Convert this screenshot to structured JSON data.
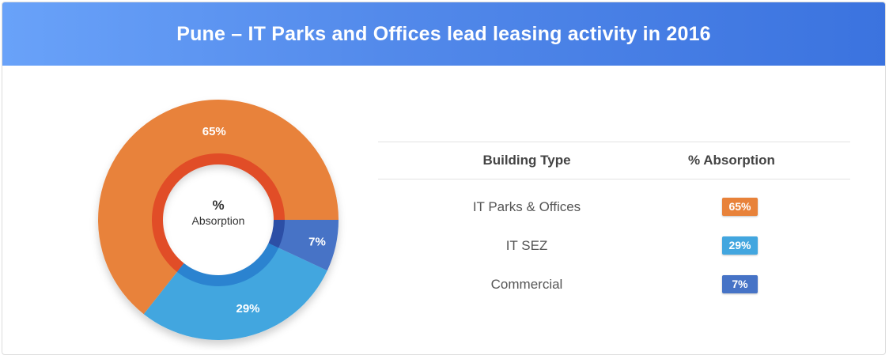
{
  "header": {
    "title": "Pune – IT Parks and Offices lead leasing activity in 2016"
  },
  "donut": {
    "center_line1": "%",
    "center_line2": "Absorption"
  },
  "table": {
    "headers": {
      "building_type": "Building Type",
      "absorption": "% Absorption"
    },
    "rows": [
      {
        "building_type": "IT Parks & Offices",
        "absorption": "65%"
      },
      {
        "building_type": "IT SEZ",
        "absorption": "29%"
      },
      {
        "building_type": "Commercial",
        "absorption": "7%"
      }
    ]
  },
  "chart_data": {
    "type": "pie",
    "title": "Pune – IT Parks and Offices lead leasing activity in 2016",
    "categories": [
      "IT Parks & Offices",
      "IT SEZ",
      "Commercial"
    ],
    "values": [
      65,
      29,
      7
    ],
    "labels": [
      "65%",
      "29%",
      "7%"
    ],
    "colors": [
      "#e8823a",
      "#42a6df",
      "#4673c6"
    ],
    "inner_ring_colors": [
      "#e14d27",
      "#2b83d0",
      "#2c4fa6"
    ]
  }
}
